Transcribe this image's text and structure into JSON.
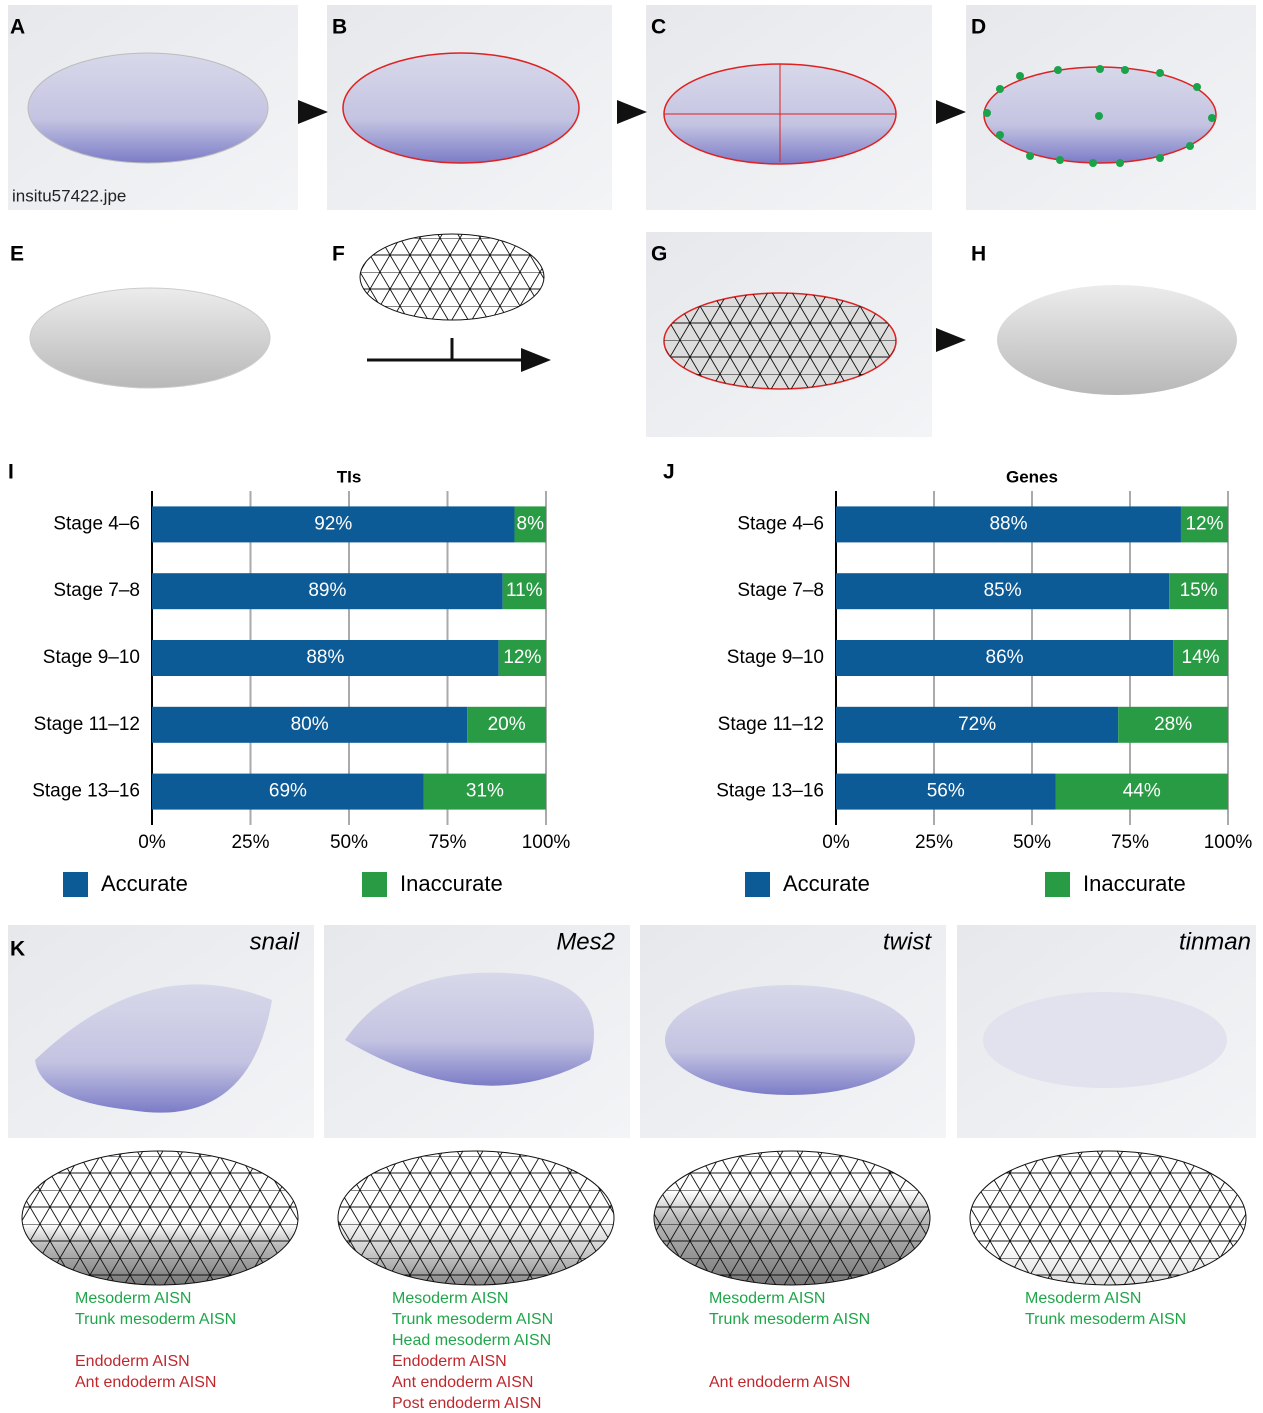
{
  "panel_labels": [
    "A",
    "B",
    "C",
    "D",
    "E",
    "F",
    "G",
    "H",
    "I",
    "J",
    "K"
  ],
  "filename": "insitu57422.jpe",
  "chart_data": [
    {
      "type": "bar",
      "orientation": "horizontal",
      "stacked": true,
      "title": "TIs",
      "categories": [
        "Stage 4–6",
        "Stage 7–8",
        "Stage 9–10",
        "Stage 11–12",
        "Stage 13–16"
      ],
      "series": [
        {
          "name": "Accurate",
          "color": "#0c5a96",
          "values": [
            92,
            89,
            88,
            80,
            69
          ],
          "value_labels": [
            "92%",
            "89%",
            "88%",
            "80%",
            "69%"
          ]
        },
        {
          "name": "Inaccurate",
          "color": "#2a9b45",
          "values": [
            8,
            11,
            12,
            20,
            31
          ],
          "value_labels": [
            "8%",
            "11%",
            "12%",
            "20%",
            "31%"
          ]
        }
      ],
      "xlim": [
        0,
        100
      ],
      "xticks": [
        {
          "value": 0,
          "label": "0%"
        },
        {
          "value": 25,
          "label": "25%"
        },
        {
          "value": 50,
          "label": "50%"
        },
        {
          "value": 75,
          "label": "75%"
        },
        {
          "value": 100,
          "label": "100%"
        }
      ],
      "grid": true,
      "legend": "bottom"
    },
    {
      "type": "bar",
      "orientation": "horizontal",
      "stacked": true,
      "title": "Genes",
      "categories": [
        "Stage 4–6",
        "Stage 7–8",
        "Stage 9–10",
        "Stage 11–12",
        "Stage 13–16"
      ],
      "series": [
        {
          "name": "Accurate",
          "color": "#0c5a96",
          "values": [
            88,
            85,
            86,
            72,
            56
          ],
          "value_labels": [
            "88%",
            "85%",
            "86%",
            "72%",
            "56%"
          ]
        },
        {
          "name": "Inaccurate",
          "color": "#2a9b45",
          "values": [
            12,
            15,
            14,
            28,
            44
          ],
          "value_labels": [
            "12%",
            "15%",
            "14%",
            "28%",
            "44%"
          ]
        }
      ],
      "xlim": [
        0,
        100
      ],
      "xticks": [
        {
          "value": 0,
          "label": "0%"
        },
        {
          "value": 25,
          "label": "25%"
        },
        {
          "value": 50,
          "label": "50%"
        },
        {
          "value": 75,
          "label": "75%"
        },
        {
          "value": 100,
          "label": "100%"
        }
      ],
      "grid": true,
      "legend": "bottom"
    }
  ],
  "genes": [
    {
      "name": "snail",
      "correct": [
        "Mesoderm AISN",
        "Trunk mesoderm AISN"
      ],
      "incorrect": [
        "Endoderm AISN",
        "Ant endoderm AISN"
      ]
    },
    {
      "name": "Mes2",
      "correct": [
        "Mesoderm AISN",
        "Trunk mesoderm AISN",
        "Head mesoderm AISN"
      ],
      "incorrect": [
        "Endoderm AISN",
        "Ant endoderm AISN",
        "Post endoderm AISN"
      ]
    },
    {
      "name": "twist",
      "correct": [
        "Mesoderm AISN",
        "Trunk mesoderm AISN"
      ],
      "incorrect": [
        "Ant endoderm AISN"
      ]
    },
    {
      "name": "tinman",
      "correct": [
        "Mesoderm AISN",
        "Trunk mesoderm AISN"
      ],
      "incorrect": []
    }
  ]
}
